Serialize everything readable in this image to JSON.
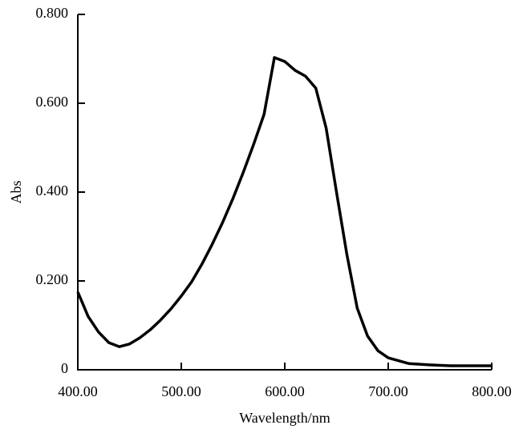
{
  "chart_data": {
    "type": "line",
    "xlabel": "Wavelength/nm",
    "ylabel": "Abs",
    "x": [
      400,
      410,
      420,
      430,
      440,
      450,
      460,
      470,
      480,
      490,
      500,
      510,
      520,
      530,
      540,
      550,
      560,
      570,
      580,
      590,
      600,
      610,
      620,
      630,
      640,
      650,
      660,
      670,
      680,
      690,
      700,
      720,
      740,
      760,
      780,
      800
    ],
    "series": [
      {
        "color": "#000000",
        "values": [
          0.175,
          0.12,
          0.085,
          0.061,
          0.052,
          0.058,
          0.072,
          0.09,
          0.112,
          0.137,
          0.166,
          0.198,
          0.238,
          0.283,
          0.332,
          0.386,
          0.445,
          0.508,
          0.575,
          0.703,
          0.694,
          0.674,
          0.661,
          0.634,
          0.544,
          0.4,
          0.26,
          0.139,
          0.076,
          0.043,
          0.027,
          0.014,
          0.011,
          0.009,
          0.009,
          0.009
        ]
      }
    ],
    "xlim": [
      400,
      800
    ],
    "xticks": [
      {
        "value": 400,
        "label": "400.00"
      },
      {
        "value": 500,
        "label": "500.00"
      },
      {
        "value": 600,
        "label": "600.00"
      },
      {
        "value": 700,
        "label": "700.00"
      },
      {
        "value": 800,
        "label": "800.00"
      }
    ],
    "ylim": [
      0,
      0.8
    ],
    "yticks": [
      0,
      {
        "value": 0.2,
        "label": "0.200"
      },
      {
        "value": 0.4,
        "label": "0.400"
      },
      {
        "value": 0.6,
        "label": "0.600"
      },
      {
        "value": 0.8,
        "label": "0.800"
      }
    ],
    "grid": false
  }
}
